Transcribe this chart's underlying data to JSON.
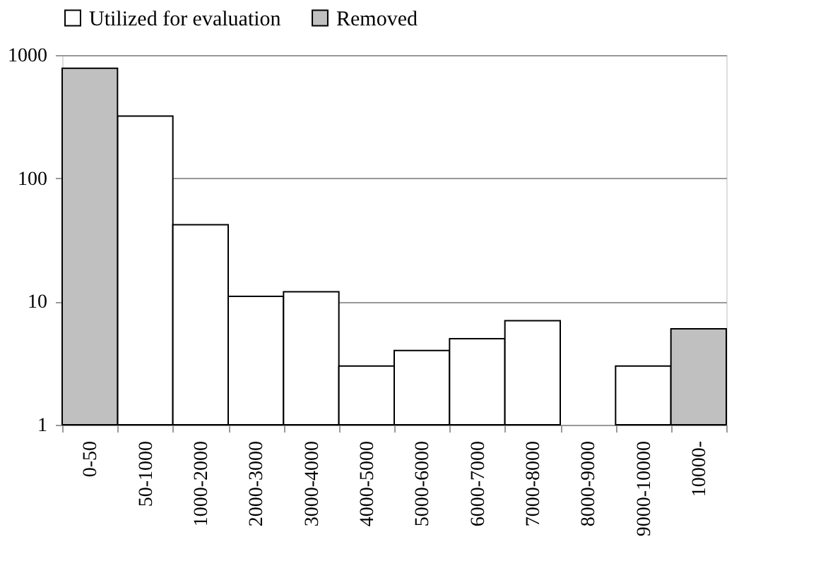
{
  "chart_data": {
    "type": "bar",
    "categories": [
      "0-50",
      "50-1000",
      "1000-2000",
      "2000-3000",
      "3000-4000",
      "4000-5000",
      "5000-6000",
      "6000-7000",
      "7000-8000",
      "8000-9000",
      "9000-10000",
      "10000-"
    ],
    "series": [
      {
        "name": "Utilized for evaluation",
        "color": "#ffffff",
        "values": [
          null,
          320,
          42,
          11,
          12,
          3,
          4,
          5,
          7,
          null,
          3,
          null
        ]
      },
      {
        "name": "Removed",
        "color": "#c0c0c0",
        "values": [
          780,
          null,
          null,
          null,
          null,
          null,
          null,
          null,
          null,
          null,
          null,
          6
        ]
      }
    ],
    "log": true,
    "ylim": [
      1,
      1000
    ],
    "yticks": [
      1,
      10,
      100,
      1000
    ],
    "grid": "y",
    "legend": "top"
  }
}
